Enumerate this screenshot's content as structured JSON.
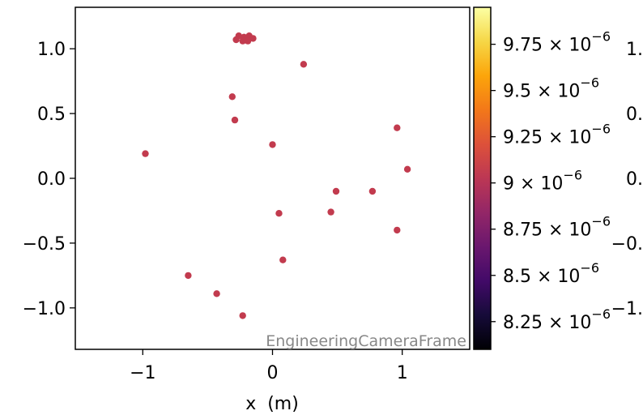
{
  "chart_data": {
    "type": "scatter",
    "title": "",
    "xlabel": "x  (m)",
    "ylabel": "",
    "xlim": [
      -1.52,
      1.52
    ],
    "ylim": [
      -1.32,
      1.32
    ],
    "x_ticks": [
      {
        "value": -1,
        "label": "−1"
      },
      {
        "value": 0,
        "label": "0"
      },
      {
        "value": 1,
        "label": "1"
      }
    ],
    "y_ticks": [
      {
        "value": 1.0,
        "label": "1.0"
      },
      {
        "value": 0.5,
        "label": "0.5"
      },
      {
        "value": 0.0,
        "label": "0.0"
      },
      {
        "value": -0.5,
        "label": "−0.5"
      },
      {
        "value": -1.0,
        "label": "−1.0"
      }
    ],
    "annotation": "EngineeringCameraFrame",
    "marker_color": "#c23b4e",
    "points": [
      {
        "x": -0.26,
        "y": 1.1
      },
      {
        "x": -0.22,
        "y": 1.09
      },
      {
        "x": -0.18,
        "y": 1.1
      },
      {
        "x": -0.15,
        "y": 1.08
      },
      {
        "x": -0.19,
        "y": 1.06
      },
      {
        "x": -0.23,
        "y": 1.06
      },
      {
        "x": -0.28,
        "y": 1.07
      },
      {
        "x": 0.24,
        "y": 0.88
      },
      {
        "x": -0.31,
        "y": 0.63
      },
      {
        "x": -0.29,
        "y": 0.45
      },
      {
        "x": 0.0,
        "y": 0.26
      },
      {
        "x": -0.98,
        "y": 0.19
      },
      {
        "x": 0.96,
        "y": 0.39
      },
      {
        "x": 1.04,
        "y": 0.07
      },
      {
        "x": 0.49,
        "y": -0.1
      },
      {
        "x": 0.77,
        "y": -0.1
      },
      {
        "x": 0.05,
        "y": -0.27
      },
      {
        "x": 0.45,
        "y": -0.26
      },
      {
        "x": 0.96,
        "y": -0.4
      },
      {
        "x": 0.08,
        "y": -0.63
      },
      {
        "x": -0.65,
        "y": -0.75
      },
      {
        "x": -0.43,
        "y": -0.89
      },
      {
        "x": -0.23,
        "y": -1.06
      }
    ],
    "colorbar": {
      "colormap": "inferno",
      "range": [
        8.1e-06,
        9.95e-06
      ],
      "ticks": [
        {
          "value": 9.75e-06,
          "label": "9.75 × 10",
          "exp": "−6"
        },
        {
          "value": 9.5e-06,
          "label": "9.5 × 10",
          "exp": "−6"
        },
        {
          "value": 9.25e-06,
          "label": "9.25 × 10",
          "exp": "−6"
        },
        {
          "value": 9e-06,
          "label": "9 × 10",
          "exp": "−6"
        },
        {
          "value": 8.75e-06,
          "label": "8.75 × 10",
          "exp": "−6"
        },
        {
          "value": 8.5e-06,
          "label": "8.5 × 10",
          "exp": "−6"
        },
        {
          "value": 8.25e-06,
          "label": "8.25 × 10",
          "exp": "−6"
        }
      ]
    },
    "clipped_right_labels": [
      {
        "label": "1.",
        "y": 1.0
      },
      {
        "label": "0.",
        "y": 0.5
      },
      {
        "label": "0.",
        "y": 0.0
      },
      {
        "label": "−0.",
        "y": -0.5
      },
      {
        "label": "−1.",
        "y": -1.0
      }
    ]
  }
}
